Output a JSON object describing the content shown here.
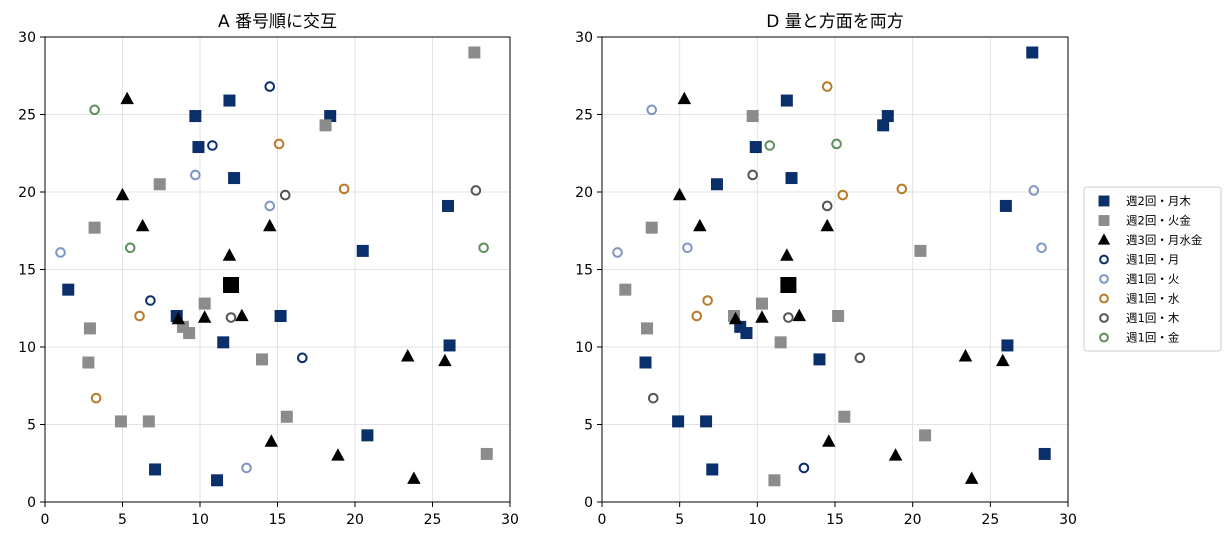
{
  "colors": {
    "navy": "#0b2f6b",
    "gray": "#8c8c8c",
    "black": "#000000",
    "lightblue": "#7f97c2",
    "orange": "#b97a2a",
    "darkgray": "#555555",
    "green": "#5f8f5f"
  },
  "legend": {
    "placement": "outside-right",
    "items": [
      {
        "label": "週2回・月木",
        "marker": "square",
        "fill": true,
        "color": "#0b2f6b"
      },
      {
        "label": "週2回・火金",
        "marker": "square",
        "fill": true,
        "color": "#8c8c8c"
      },
      {
        "label": "週3回・月水金",
        "marker": "triangle",
        "fill": true,
        "color": "#000000"
      },
      {
        "label": "週1回・月",
        "marker": "circle",
        "fill": false,
        "color": "#0b2f6b"
      },
      {
        "label": "週1回・火",
        "marker": "circle",
        "fill": false,
        "color": "#7f97c2"
      },
      {
        "label": "週1回・水",
        "marker": "circle",
        "fill": false,
        "color": "#b97a2a"
      },
      {
        "label": "週1回・木",
        "marker": "circle",
        "fill": false,
        "color": "#555555"
      },
      {
        "label": "週1回・金",
        "marker": "circle",
        "fill": false,
        "color": "#5f8f5f"
      }
    ]
  },
  "chart_data": [
    {
      "type": "scatter",
      "title": "A 番号順に交互",
      "xlim": [
        0,
        30
      ],
      "ylim": [
        0,
        30
      ],
      "xticks": [
        0,
        5,
        10,
        15,
        20,
        25,
        30
      ],
      "yticks": [
        0,
        5,
        10,
        15,
        20,
        25,
        30
      ],
      "grid": true,
      "depot": {
        "x": 12,
        "y": 14
      },
      "series": [
        {
          "name": "週2回・月木",
          "marker": "square",
          "fill": true,
          "color": "#0b2f6b",
          "points": [
            [
              9.7,
              24.9
            ],
            [
              9.9,
              22.9
            ],
            [
              11.9,
              25.9
            ],
            [
              12.2,
              20.9
            ],
            [
              18.4,
              24.9
            ],
            [
              1.5,
              13.7
            ],
            [
              8.5,
              12.0
            ],
            [
              11.5,
              10.3
            ],
            [
              15.2,
              12.0
            ],
            [
              20.5,
              16.2
            ],
            [
              26.0,
              19.1
            ],
            [
              26.1,
              10.1
            ],
            [
              20.8,
              4.3
            ],
            [
              7.1,
              2.1
            ],
            [
              11.1,
              1.4
            ]
          ]
        },
        {
          "name": "週2回・火金",
          "marker": "square",
          "fill": true,
          "color": "#8c8c8c",
          "points": [
            [
              27.7,
              29.0
            ],
            [
              18.1,
              24.3
            ],
            [
              7.4,
              20.5
            ],
            [
              3.2,
              17.7
            ],
            [
              2.9,
              11.2
            ],
            [
              2.8,
              9.0
            ],
            [
              4.9,
              5.2
            ],
            [
              6.7,
              5.2
            ],
            [
              8.9,
              11.3
            ],
            [
              9.3,
              10.9
            ],
            [
              10.3,
              12.8
            ],
            [
              14.0,
              9.2
            ],
            [
              15.6,
              5.5
            ],
            [
              28.5,
              3.1
            ]
          ]
        },
        {
          "name": "週3回・月水金",
          "marker": "triangle",
          "fill": true,
          "color": "#000000",
          "points": [
            [
              5.3,
              26.0
            ],
            [
              5.0,
              19.8
            ],
            [
              6.3,
              17.8
            ],
            [
              11.9,
              15.9
            ],
            [
              14.5,
              17.8
            ],
            [
              8.6,
              11.8
            ],
            [
              10.3,
              11.9
            ],
            [
              12.7,
              12.0
            ],
            [
              23.4,
              9.4
            ],
            [
              25.8,
              9.1
            ],
            [
              14.6,
              3.9
            ],
            [
              18.9,
              3.0
            ],
            [
              23.8,
              1.5
            ]
          ]
        },
        {
          "name": "週1回・月",
          "marker": "circle",
          "fill": false,
          "color": "#0b2f6b",
          "points": [
            [
              14.5,
              26.8
            ],
            [
              10.8,
              23.0
            ],
            [
              6.8,
              13.0
            ],
            [
              16.6,
              9.3
            ]
          ]
        },
        {
          "name": "週1回・火",
          "marker": "circle",
          "fill": false,
          "color": "#7f97c2",
          "points": [
            [
              1.0,
              16.1
            ],
            [
              9.7,
              21.1
            ],
            [
              14.5,
              19.1
            ],
            [
              13.0,
              2.2
            ]
          ]
        },
        {
          "name": "週1回・水",
          "marker": "circle",
          "fill": false,
          "color": "#b97a2a",
          "points": [
            [
              15.1,
              23.1
            ],
            [
              19.3,
              20.2
            ],
            [
              6.1,
              12.0
            ],
            [
              3.3,
              6.7
            ]
          ]
        },
        {
          "name": "週1回・木",
          "marker": "circle",
          "fill": false,
          "color": "#555555",
          "points": [
            [
              15.5,
              19.8
            ],
            [
              12.0,
              11.9
            ],
            [
              27.8,
              20.1
            ]
          ]
        },
        {
          "name": "週1回・金",
          "marker": "circle",
          "fill": false,
          "color": "#5f8f5f",
          "points": [
            [
              3.2,
              25.3
            ],
            [
              5.5,
              16.4
            ],
            [
              28.3,
              16.4
            ]
          ]
        }
      ]
    },
    {
      "type": "scatter",
      "title": "D 量と方面を両方",
      "xlim": [
        0,
        30
      ],
      "ylim": [
        0,
        30
      ],
      "xticks": [
        0,
        5,
        10,
        15,
        20,
        25,
        30
      ],
      "yticks": [
        0,
        5,
        10,
        15,
        20,
        25,
        30
      ],
      "grid": true,
      "depot": {
        "x": 12,
        "y": 14
      },
      "series": [
        {
          "name": "週2回・月木",
          "marker": "square",
          "fill": true,
          "color": "#0b2f6b",
          "points": [
            [
              27.7,
              29.0
            ],
            [
              11.9,
              25.9
            ],
            [
              18.4,
              24.9
            ],
            [
              18.1,
              24.3
            ],
            [
              9.9,
              22.9
            ],
            [
              7.4,
              20.5
            ],
            [
              12.2,
              20.9
            ],
            [
              26.0,
              19.1
            ],
            [
              8.9,
              11.3
            ],
            [
              9.3,
              10.9
            ],
            [
              2.8,
              9.0
            ],
            [
              14.0,
              9.2
            ],
            [
              26.1,
              10.1
            ],
            [
              4.9,
              5.2
            ],
            [
              6.7,
              5.2
            ],
            [
              7.1,
              2.1
            ],
            [
              28.5,
              3.1
            ]
          ]
        },
        {
          "name": "週2回・火金",
          "marker": "square",
          "fill": true,
          "color": "#8c8c8c",
          "points": [
            [
              9.7,
              24.9
            ],
            [
              3.2,
              17.7
            ],
            [
              1.5,
              13.7
            ],
            [
              2.9,
              11.2
            ],
            [
              8.5,
              12.0
            ],
            [
              10.3,
              12.8
            ],
            [
              11.5,
              10.3
            ],
            [
              15.2,
              12.0
            ],
            [
              20.5,
              16.2
            ],
            [
              15.6,
              5.5
            ],
            [
              20.8,
              4.3
            ],
            [
              11.1,
              1.4
            ]
          ]
        },
        {
          "name": "週3回・月水金",
          "marker": "triangle",
          "fill": true,
          "color": "#000000",
          "points": [
            [
              5.3,
              26.0
            ],
            [
              5.0,
              19.8
            ],
            [
              6.3,
              17.8
            ],
            [
              11.9,
              15.9
            ],
            [
              14.5,
              17.8
            ],
            [
              8.6,
              11.8
            ],
            [
              10.3,
              11.9
            ],
            [
              12.7,
              12.0
            ],
            [
              23.4,
              9.4
            ],
            [
              25.8,
              9.1
            ],
            [
              14.6,
              3.9
            ],
            [
              18.9,
              3.0
            ],
            [
              23.8,
              1.5
            ]
          ]
        },
        {
          "name": "週1回・月",
          "marker": "circle",
          "fill": false,
          "color": "#0b2f6b",
          "points": [
            [
              13.0,
              2.2
            ]
          ]
        },
        {
          "name": "週1回・火",
          "marker": "circle",
          "fill": false,
          "color": "#7f97c2",
          "points": [
            [
              3.2,
              25.3
            ],
            [
              1.0,
              16.1
            ],
            [
              5.5,
              16.4
            ],
            [
              27.8,
              20.1
            ],
            [
              28.3,
              16.4
            ]
          ]
        },
        {
          "name": "週1回・水",
          "marker": "circle",
          "fill": false,
          "color": "#b97a2a",
          "points": [
            [
              14.5,
              26.8
            ],
            [
              15.5,
              19.8
            ],
            [
              19.3,
              20.2
            ],
            [
              6.8,
              13.0
            ],
            [
              6.1,
              12.0
            ]
          ]
        },
        {
          "name": "週1回・木",
          "marker": "circle",
          "fill": false,
          "color": "#555555",
          "points": [
            [
              9.7,
              21.1
            ],
            [
              14.5,
              19.1
            ],
            [
              12.0,
              11.9
            ],
            [
              16.6,
              9.3
            ],
            [
              3.3,
              6.7
            ]
          ]
        },
        {
          "name": "週1回・金",
          "marker": "circle",
          "fill": false,
          "color": "#5f8f5f",
          "points": [
            [
              10.8,
              23.0
            ],
            [
              15.1,
              23.1
            ]
          ]
        }
      ]
    }
  ]
}
